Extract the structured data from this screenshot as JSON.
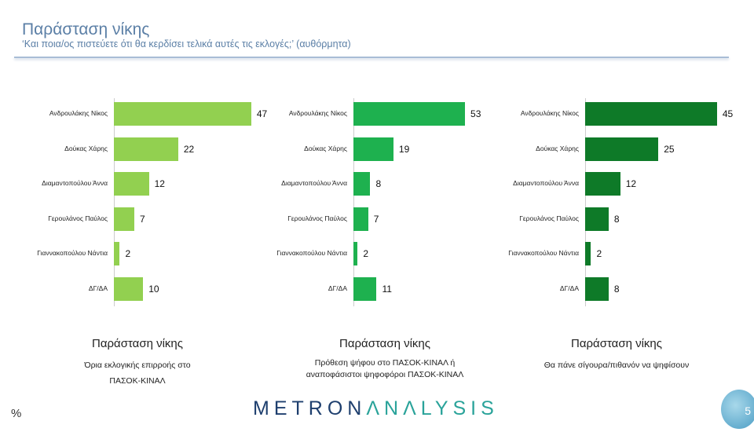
{
  "header": {
    "title": "Παράσταση νίκης",
    "subtitle": "‘Και ποια/ος πιστεύετε ότι θα κερδίσει τελικά αυτές τις εκλογές;’ (αυθόρμητα)"
  },
  "chart_data": [
    {
      "type": "bar",
      "orientation": "horizontal",
      "title": "Παράσταση νίκης",
      "subtitle": "Όρια εκλογικής επιρροής στο ΠΑΣΟΚ-ΚΙΝΑΛ",
      "color": "#92d050",
      "categories": [
        "Ανδρουλάκης Νίκος",
        "Δούκας Χάρης",
        "Διαμαντοπούλου Άννα",
        "Γερουλάνος Παύλος",
        "Γιαννακοπούλου Νάντια",
        "ΔΓ/ΔΑ"
      ],
      "values": [
        47,
        22,
        12,
        7,
        2,
        10
      ]
    },
    {
      "type": "bar",
      "orientation": "horizontal",
      "title": "Παράσταση νίκης",
      "subtitle": "Πρόθεση ψήφου στο ΠΑΣΟΚ-ΚΙΝΑΛ ή αναποφάσιστοι ψηφοφόροι ΠΑΣΟΚ-ΚΙΝΑΛ",
      "color": "#1eb14f",
      "categories": [
        "Ανδρουλάκης Νίκος",
        "Δούκας Χάρης",
        "Διαμαντοπούλου Άννα",
        "Γερουλάνος Παύλος",
        "Γιαννακοπούλου Νάντια",
        "ΔΓ/ΔΑ"
      ],
      "values": [
        53,
        19,
        8,
        7,
        2,
        11
      ]
    },
    {
      "type": "bar",
      "orientation": "horizontal",
      "title": "Παράσταση νίκης",
      "subtitle": "Θα πάνε σίγουρα/πιθανόν να ψηφίσουν",
      "color": "#0e7a28",
      "categories": [
        "Ανδρουλάκης Νίκος",
        "Δούκας Χάρης",
        "Διαμαντοπούλου Άννα",
        "Γερουλάνος Παύλος",
        "Γιαννακοπούλου Νάντια",
        "ΔΓ/ΔΑ"
      ],
      "values": [
        45,
        25,
        12,
        8,
        2,
        8
      ]
    }
  ],
  "footer": {
    "unit": "%",
    "logo_a": "METRON",
    "logo_b": "ΛNΛLYSIS",
    "page": "5"
  }
}
